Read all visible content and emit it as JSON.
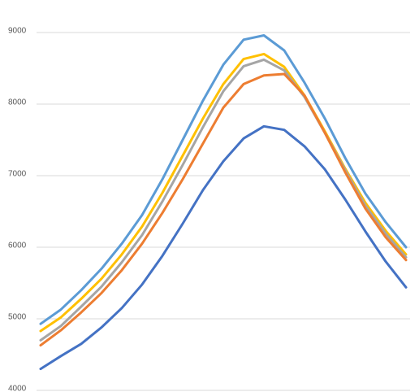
{
  "chart_data": {
    "type": "line",
    "categories": [
      null,
      null,
      null,
      null,
      null,
      null,
      null,
      null,
      null,
      null,
      null,
      null,
      null,
      null,
      null,
      null,
      null,
      null,
      null
    ],
    "series": [
      {
        "color": "#5b9bd5",
        "values": [
          4930,
          5130,
          5400,
          5700,
          6050,
          6450,
          6950,
          7500,
          8050,
          8550,
          8900,
          8960,
          8750,
          8300,
          7800,
          7250,
          6750,
          6350,
          6000
        ]
      },
      {
        "color": "#ffc000",
        "values": [
          4830,
          5020,
          5280,
          5560,
          5900,
          6290,
          6760,
          7280,
          7800,
          8280,
          8630,
          8700,
          8520,
          8120,
          7620,
          7100,
          6620,
          6230,
          5900
        ]
      },
      {
        "color": "#a5a5a5",
        "values": [
          4700,
          4900,
          5170,
          5450,
          5790,
          6170,
          6640,
          7150,
          7680,
          8180,
          8530,
          8620,
          8470,
          8100,
          7600,
          7080,
          6580,
          6190,
          5860
        ]
      },
      {
        "color": "#ed7d31",
        "values": [
          4630,
          4840,
          5090,
          5360,
          5680,
          6050,
          6480,
          6950,
          7450,
          7950,
          8280,
          8400,
          8420,
          8120,
          7600,
          7050,
          6540,
          6140,
          5820
        ]
      },
      {
        "color": "#4472c4",
        "values": [
          4300,
          4480,
          4650,
          4880,
          5150,
          5480,
          5880,
          6330,
          6800,
          7200,
          7520,
          7690,
          7640,
          7410,
          7090,
          6670,
          6220,
          5800,
          5440
        ]
      }
    ],
    "ylim": [
      4000,
      9000
    ],
    "yticks": [
      4000,
      5000,
      6000,
      7000,
      8000,
      9000
    ],
    "grid": true
  }
}
